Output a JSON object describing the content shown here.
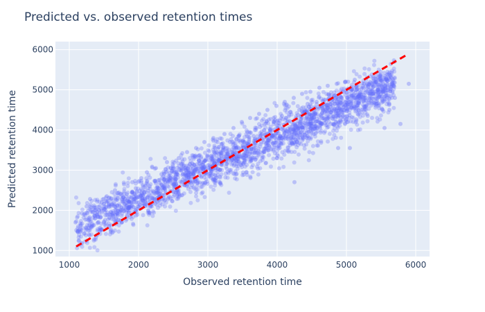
{
  "chart_data": {
    "type": "scatter",
    "title": "Predicted vs. observed retention times",
    "xlabel": "Observed retention time",
    "ylabel": "Predicted retention time",
    "xlim": [
      800,
      6200
    ],
    "ylim": [
      850,
      6200
    ],
    "xticks": [
      1000,
      2000,
      3000,
      4000,
      5000,
      6000
    ],
    "yticks": [
      1000,
      2000,
      3000,
      4000,
      5000,
      6000
    ],
    "grid": true,
    "legend": "none",
    "colors": {
      "plot_background": "#e5ecf6",
      "grid": "#ffffff",
      "points": "#636efa",
      "reference_line": "#ff0000",
      "text": "#2a3f5f"
    },
    "series": [
      {
        "kind": "points",
        "opacity": 0.35,
        "trend": {
          "intercept": 700,
          "slope": 0.78
        },
        "spread_sd": 280,
        "x": [
          1090,
          1120,
          1160,
          1210,
          1250,
          1280,
          1300,
          1330,
          1370,
          1400,
          1430,
          1470,
          1500,
          1540,
          1580,
          1620,
          1660,
          1700,
          1740,
          1790,
          1830,
          1870,
          1910,
          1960,
          2000,
          2040,
          2080,
          2120,
          2160,
          2200,
          2250,
          2290,
          2330,
          2370,
          2410,
          2460,
          2500,
          2540,
          2580,
          2620,
          2660,
          2700,
          2740,
          2790,
          2830,
          2870,
          2910,
          2950,
          2990,
          3030,
          3080,
          3120,
          3160,
          3200,
          3240,
          3280,
          3320,
          3370,
          3410,
          3450,
          3490,
          3530,
          3570,
          3610,
          3660,
          3700,
          3740,
          3780,
          3820,
          3860,
          3900,
          3950,
          3990,
          4030,
          4070,
          4110,
          4150,
          4190,
          4240,
          4280,
          4320,
          4360,
          4400,
          4440,
          4480,
          4530,
          4570,
          4610,
          4650,
          4690,
          4730,
          4770,
          4820,
          4860,
          4900,
          4940,
          4980,
          5020,
          5070,
          5120,
          5180,
          5230,
          5300,
          5360,
          5430,
          5480,
          5550,
          5620,
          5700,
          5780,
          5900,
          4250,
          5050,
          4880,
          5550
        ],
        "y": [
          1700,
          1480,
          1620,
          1900,
          2100,
          1750,
          2280,
          1600,
          1850,
          1380,
          2000,
          2200,
          1700,
          2350,
          1900,
          2150,
          2500,
          2300,
          2000,
          2650,
          2400,
          2200,
          2700,
          2550,
          2100,
          2800,
          2450,
          2950,
          2600,
          2300,
          3050,
          2750,
          2900,
          2550,
          3200,
          2800,
          3050,
          2650,
          3300,
          3000,
          2800,
          3450,
          3150,
          2900,
          3550,
          3250,
          3050,
          3700,
          3350,
          3100,
          3800,
          3450,
          3250,
          3650,
          3900,
          3400,
          3700,
          4050,
          3550,
          3850,
          4200,
          3700,
          3950,
          4300,
          3850,
          4050,
          4400,
          3900,
          4150,
          4500,
          4000,
          4300,
          4600,
          4100,
          4350,
          4700,
          4200,
          4450,
          4800,
          4300,
          4500,
          4900,
          4400,
          4650,
          4950,
          4500,
          4700,
          5050,
          4600,
          4750,
          5100,
          4650,
          4850,
          5150,
          4700,
          4950,
          5200,
          4800,
          5000,
          5250,
          4850,
          5050,
          5150,
          4900,
          5200,
          4950,
          5100,
          4500,
          4800,
          4150,
          5150,
          2700,
          3550,
          3550,
          4050
        ]
      },
      {
        "kind": "reference_line",
        "style": "dashed",
        "x": [
          1100,
          5900
        ],
        "y": [
          1100,
          5900
        ]
      }
    ]
  }
}
